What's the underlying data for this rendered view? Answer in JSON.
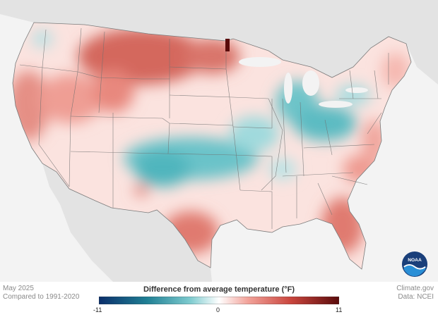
{
  "meta": {
    "period": "May 2025",
    "baseline": "Compared to 1991-2020",
    "source": "Climate.gov",
    "data_source": "Data: NCEI"
  },
  "legend": {
    "title": "Difference from average temperature",
    "unit": "(°F)",
    "min": "-11",
    "mid": "0",
    "max": "11",
    "colors": [
      "#0b2f6b",
      "#1f8a99",
      "#69c3c8",
      "#ffffff",
      "#f2a39a",
      "#c9453d",
      "#5a0b0b"
    ]
  },
  "map": {
    "land_color": "#e3e3e3",
    "ocean_color": "#f3f3f3",
    "state_line_color": "#6f6f6f"
  },
  "logo": {
    "text": "NOAA"
  }
}
